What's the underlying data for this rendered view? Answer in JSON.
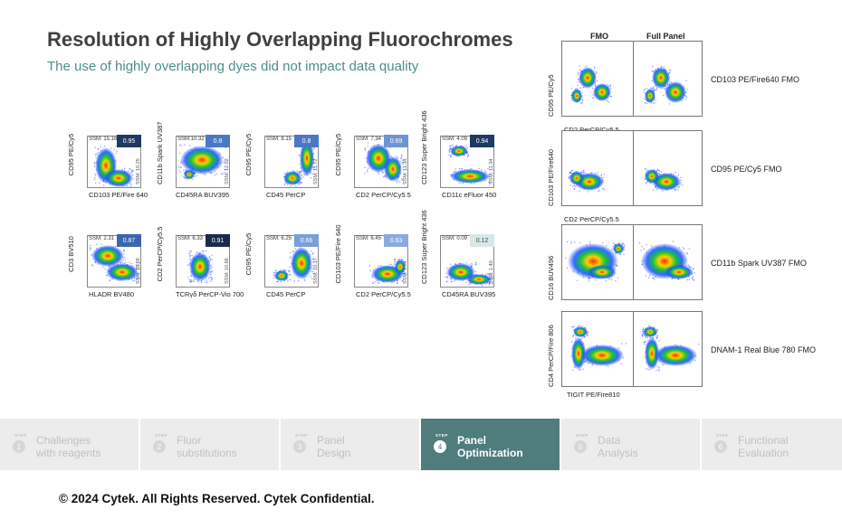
{
  "title": "Resolution of Highly Overlapping Fluorochromes",
  "subtitle": "The use of highly overlapping dyes did not impact data quality",
  "left_plots": [
    {
      "ylabel": "CD95 PE/Cy5",
      "xlabel": "CD103 PE/Fire 640",
      "ssm": "SSM: 15.16",
      "score": "0.95",
      "score_color": "#1e3a63",
      "ssm2": "SSM: 10.25"
    },
    {
      "ylabel": "CD11b Spark UV387",
      "xlabel": "CD45RA BUV395",
      "ssm": "SSM:10.32",
      "score": "0.8",
      "score_color": "#4a78c4",
      "ssm2": "SSM: 12.02"
    },
    {
      "ylabel": "CD95 PE/Cy5",
      "xlabel": "CD45 PerCP",
      "ssm": "SSM: 8.15",
      "score": "0.8",
      "score_color": "#4a78c4",
      "ssm2": "SSM: 11.72"
    },
    {
      "ylabel": "CD95 PE/Cy5",
      "xlabel": "CD2 PerCP/Cy5.5",
      "ssm": "SSM: 7.34",
      "score": "0.69",
      "score_color": "#6d95d4",
      "ssm2": "SSM: 11.38"
    },
    {
      "ylabel": "CD123 Super Bright 436",
      "xlabel": "CD11c eFluor 450",
      "ssm": "SSM: 4.09",
      "score": "0.94",
      "score_color": "#1e3a63",
      "ssm2": "SSM: 11.34"
    },
    {
      "ylabel": "CD3 BV510",
      "xlabel": "HLADR BV480",
      "ssm": "SSM: 2.31",
      "score": "0.87",
      "score_color": "#3a66b0",
      "ssm2": "SSM: 10.69"
    },
    {
      "ylabel": "CD2 PerCP/Cy5.5",
      "xlabel": "TCRγδ  PerCP-Vio 700",
      "ssm": "SSM: 6.33",
      "score": "0.91",
      "score_color": "#1a2b4a",
      "ssm2": "SSM: 10.66"
    },
    {
      "ylabel": "CD95 PE/Cy5",
      "xlabel": "CD45 PerCP",
      "ssm": "SSM: 6.25",
      "score": "0.66",
      "score_color": "#7a9fd9",
      "ssm2": "SSM: 10.17"
    },
    {
      "ylabel": "CD103 PE/Fire 640",
      "xlabel": "CD2 PerCP/Cy5.5",
      "ssm": "SSM: 6.45",
      "score": "0.63",
      "score_color": "#8aaadf",
      "ssm2": "SSM: 9.84"
    },
    {
      "ylabel": "CD123 Super Bright 436",
      "xlabel": "CD45RA BUV395",
      "ssm": "SSM: 0.09",
      "score": "0.12",
      "score_color": "#d7e7e7",
      "ssm2": "SSM: 1.40"
    }
  ],
  "fmo_headers": {
    "fmo": "FMO",
    "full": "Full Panel"
  },
  "right_plots": [
    {
      "ylabel": "CD95 PE/Cy5",
      "xlabel": "CD2 PerCP/Cy5.5",
      "label": "CD103 PE/Fire640 FMO"
    },
    {
      "ylabel": "CD103 PE/Fire640",
      "xlabel": "CD2 PerCP/Cy5.5",
      "label": "CD95 PE/Cy5 FMO"
    },
    {
      "ylabel": "CD16 BUV496",
      "xlabel": "CD45RA BUV395",
      "label": "CD11b Spark UV387 FMO"
    },
    {
      "ylabel": "CD4 PerCP/Fire 806",
      "xlabel": "TIGIT PE/Fire810",
      "label": "DNAM-1 Real Blue 780 FMO"
    }
  ],
  "steps": [
    {
      "word": "STEP",
      "num": "1",
      "label1": "Challenges",
      "label2": "with reagents"
    },
    {
      "word": "STEP",
      "num": "2",
      "label1": "Fluor",
      "label2": "substitutions"
    },
    {
      "word": "STEP",
      "num": "3",
      "label1": "Panel",
      "label2": "Design"
    },
    {
      "word": "STEP",
      "num": "4",
      "label1": "Panel",
      "label2": "Optimization"
    },
    {
      "word": "STEP",
      "num": "5",
      "label1": "Data",
      "label2": "Analysis"
    },
    {
      "word": "STEP",
      "num": "6",
      "label1": "Functional",
      "label2": "Evaluation"
    }
  ],
  "active_step": 3,
  "footer": "© 2024 Cytek. All Rights Reserved. Cytek Confidential."
}
